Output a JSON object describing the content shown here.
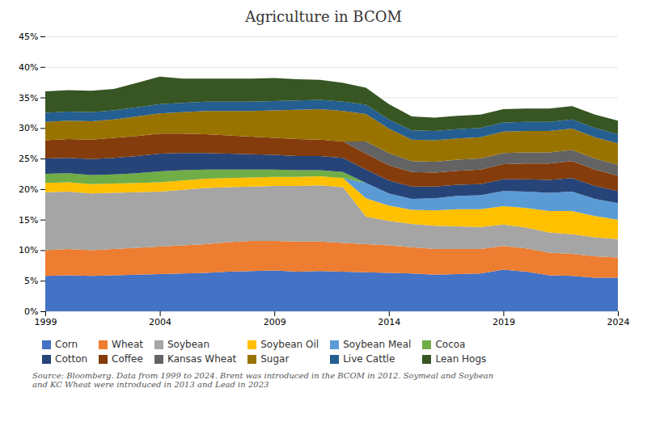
{
  "chart_data": {
    "type": "area",
    "stacked": true,
    "title": "Agriculture in BCOM",
    "x": [
      1999,
      2000,
      2001,
      2002,
      2003,
      2004,
      2005,
      2006,
      2007,
      2008,
      2009,
      2010,
      2011,
      2012,
      2013,
      2014,
      2015,
      2016,
      2017,
      2018,
      2019,
      2020,
      2021,
      2022,
      2023,
      2024
    ],
    "series": [
      {
        "name": "Corn",
        "color": "#4472C4",
        "values": [
          5.8,
          5.9,
          5.8,
          5.9,
          6.0,
          6.1,
          6.2,
          6.3,
          6.5,
          6.6,
          6.7,
          6.5,
          6.6,
          6.5,
          6.4,
          6.3,
          6.2,
          6.0,
          6.1,
          6.2,
          6.8,
          6.5,
          5.9,
          5.8,
          5.5,
          5.5
        ]
      },
      {
        "name": "Wheat",
        "color": "#ED7D31",
        "values": [
          4.2,
          4.3,
          4.2,
          4.3,
          4.4,
          4.5,
          4.6,
          4.7,
          4.8,
          4.9,
          4.8,
          4.9,
          4.8,
          4.7,
          4.6,
          4.5,
          4.3,
          4.2,
          4.1,
          4.0,
          3.9,
          3.8,
          3.7,
          3.6,
          3.5,
          3.3
        ]
      },
      {
        "name": "Soybean",
        "color": "#A5A5A5",
        "values": [
          9.5,
          9.4,
          9.3,
          9.2,
          9.1,
          9.0,
          9.1,
          9.2,
          9.0,
          8.9,
          9.0,
          9.1,
          9.2,
          9.1,
          4.5,
          4.0,
          3.8,
          3.8,
          3.7,
          3.6,
          3.5,
          3.4,
          3.3,
          3.2,
          3.1,
          3.0
        ]
      },
      {
        "name": "Soybean Oil",
        "color": "#FFC000",
        "values": [
          1.5,
          1.5,
          1.5,
          1.5,
          1.5,
          1.5,
          1.5,
          1.5,
          1.5,
          1.5,
          1.5,
          1.5,
          1.5,
          1.5,
          3.0,
          2.5,
          2.3,
          2.5,
          2.8,
          2.9,
          3.0,
          3.2,
          3.5,
          3.8,
          3.5,
          3.2
        ]
      },
      {
        "name": "Soybean Meal",
        "color": "#5B9BD5",
        "values": [
          0.0,
          0.0,
          0.0,
          0.0,
          0.0,
          0.0,
          0.0,
          0.0,
          0.0,
          0.0,
          0.0,
          0.0,
          0.0,
          0.0,
          2.5,
          2.0,
          1.8,
          2.0,
          2.2,
          2.3,
          2.5,
          2.7,
          3.0,
          3.2,
          2.8,
          2.7
        ]
      },
      {
        "name": "Cocoa",
        "color": "#70AD47",
        "values": [
          1.5,
          1.5,
          1.5,
          1.5,
          1.6,
          1.8,
          1.7,
          1.5,
          1.4,
          1.3,
          1.2,
          1.1,
          1.0,
          1.0,
          0.0,
          0.0,
          0.0,
          0.0,
          0.0,
          0.0,
          0.0,
          0.0,
          0.0,
          0.0,
          0.0,
          0.0
        ]
      },
      {
        "name": "Cotton",
        "color": "#264478",
        "values": [
          2.5,
          2.5,
          2.6,
          2.7,
          2.8,
          2.9,
          2.8,
          2.7,
          2.6,
          2.5,
          2.4,
          2.3,
          2.3,
          2.3,
          2.2,
          2.1,
          2.0,
          1.9,
          1.8,
          1.8,
          1.9,
          2.0,
          2.1,
          2.2,
          2.1,
          2.0
        ]
      },
      {
        "name": "Coffee",
        "color": "#843C0C",
        "values": [
          3.0,
          3.1,
          3.2,
          3.3,
          3.3,
          3.3,
          3.2,
          3.1,
          3.0,
          2.9,
          2.8,
          2.8,
          2.7,
          2.7,
          2.6,
          2.5,
          2.4,
          2.3,
          2.3,
          2.4,
          2.5,
          2.6,
          2.7,
          2.8,
          2.7,
          2.5
        ]
      },
      {
        "name": "Kansas Wheat",
        "color": "#636363",
        "values": [
          0.0,
          0.0,
          0.0,
          0.0,
          0.0,
          0.0,
          0.0,
          0.0,
          0.0,
          0.0,
          0.0,
          0.0,
          0.0,
          0.0,
          2.0,
          2.0,
          1.8,
          1.8,
          1.8,
          1.8,
          1.8,
          1.8,
          1.8,
          1.8,
          1.8,
          1.8
        ]
      },
      {
        "name": "Sugar",
        "color": "#997300",
        "values": [
          3.0,
          3.0,
          3.0,
          3.0,
          3.2,
          3.3,
          3.5,
          3.8,
          4.0,
          4.2,
          4.5,
          4.8,
          5.0,
          5.0,
          4.5,
          4.0,
          3.5,
          3.5,
          3.5,
          3.5,
          3.5,
          3.5,
          3.5,
          3.5,
          3.5,
          3.5
        ]
      },
      {
        "name": "Live Cattle",
        "color": "#255E91",
        "values": [
          1.5,
          1.5,
          1.5,
          1.5,
          1.5,
          1.5,
          1.5,
          1.5,
          1.5,
          1.5,
          1.5,
          1.5,
          1.5,
          1.5,
          1.5,
          1.5,
          1.5,
          1.5,
          1.5,
          1.5,
          1.5,
          1.5,
          1.5,
          1.5,
          1.5,
          1.5
        ]
      },
      {
        "name": "Lean Hogs",
        "color": "#375623",
        "values": [
          3.5,
          3.5,
          3.5,
          3.5,
          4.0,
          4.5,
          4.0,
          3.8,
          3.8,
          3.8,
          3.8,
          3.5,
          3.3,
          3.1,
          2.8,
          2.5,
          2.3,
          2.2,
          2.2,
          2.2,
          2.2,
          2.2,
          2.2,
          2.2,
          2.2,
          2.2
        ]
      }
    ],
    "xlim": [
      1999,
      2024
    ],
    "xticks": [
      1999,
      2004,
      2009,
      2014,
      2019,
      2024
    ],
    "ylim": [
      0,
      45
    ],
    "yticks": [
      {
        "value": 0,
        "label": "0%"
      },
      {
        "value": 5,
        "label": "5%"
      },
      {
        "value": 10,
        "label": "10%"
      },
      {
        "value": 15,
        "label": "15%"
      },
      {
        "value": 20,
        "label": "20%"
      },
      {
        "value": 25,
        "label": "25%"
      },
      {
        "value": 30,
        "label": "30%"
      },
      {
        "value": 35,
        "label": "35%"
      },
      {
        "value": 40,
        "label": "40%"
      },
      {
        "value": 45,
        "label": "45%"
      }
    ],
    "grid": true,
    "legend": "bottom",
    "annotations": [
      "Source: Bloomberg. Data from 1999 to 2024. Brent was introduced in the BCOM in 2012. Soymeal and Soybean\nand KC Wheat were introduced in 2013 and Lead in 2023"
    ]
  }
}
